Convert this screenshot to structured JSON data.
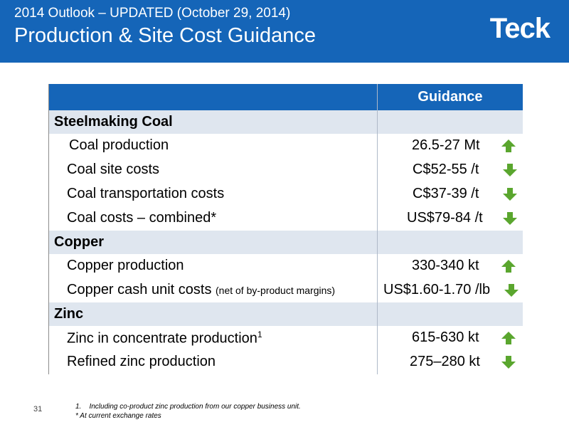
{
  "header": {
    "supertitle": "2014 Outlook – UPDATED (October 29, 2014)",
    "title": "Production & Site Cost Guidance",
    "logo": "Teck"
  },
  "table": {
    "column_header": "Guidance",
    "sections": [
      {
        "name": "Steelmaking Coal",
        "items": [
          {
            "label": "Coal production",
            "value": "26.5-27 Mt",
            "trend": "up"
          },
          {
            "label": "Coal site costs",
            "value": "C$52-55 /t",
            "trend": "down"
          },
          {
            "label": "Coal transportation costs",
            "value": "C$37-39 /t",
            "trend": "down"
          },
          {
            "label": "Coal costs – combined*",
            "value": "US$79-84 /t",
            "trend": "down"
          }
        ]
      },
      {
        "name": "Copper",
        "items": [
          {
            "label": "Copper production",
            "value": "330-340 kt",
            "trend": "up"
          },
          {
            "label": "Copper cash unit costs",
            "note": "(net of by-product margins)",
            "value": "US$1.60-1.70 /lb",
            "trend": "down"
          }
        ]
      },
      {
        "name": "Zinc",
        "items": [
          {
            "label": "Zinc in concentrate production",
            "superscript": "1",
            "value": "615-630 kt",
            "trend": "up"
          },
          {
            "label": "Refined zinc production",
            "value": "275–280 kt",
            "trend": "down"
          }
        ]
      }
    ]
  },
  "footnotes": {
    "note1": "1.    Including co-product zinc production from our copper business unit.",
    "note2": "* At current exchange rates"
  },
  "page_number": "31",
  "colors": {
    "brand_blue": "#1565b8",
    "section_fill": "#dfe6ef",
    "arrow_green": "#5aa62e"
  },
  "icons": {
    "up": "arrow-up-icon",
    "down": "arrow-down-icon"
  }
}
